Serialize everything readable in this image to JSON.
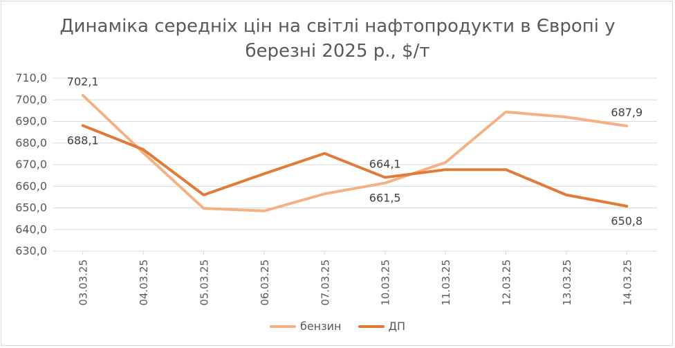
{
  "chart_data": {
    "type": "line",
    "title_lines": [
      "Динаміка середніх цін на світлі нафтопродукти в Європі у",
      "березні 2025 р., $/т"
    ],
    "categories": [
      "03.03.25",
      "04.03.25",
      "05.03.25",
      "06.03.25",
      "07.03.25",
      "10.03.25",
      "11.03.25",
      "12.03.25",
      "13.03.25",
      "14.03.25"
    ],
    "ylim": [
      630,
      710
    ],
    "yticks": [
      "630,0",
      "640,0",
      "650,0",
      "660,0",
      "670,0",
      "680,0",
      "690,0",
      "700,0",
      "710,0"
    ],
    "grid": true,
    "legend_position": "bottom",
    "series": [
      {
        "name": "бензин",
        "color": "#f4b183",
        "values": [
          702.1,
          675.5,
          649.8,
          648.6,
          656.5,
          661.5,
          671.0,
          694.4,
          692.0,
          687.9
        ],
        "labels": [
          {
            "index": 0,
            "text": "702,1",
            "pos": "above"
          },
          {
            "index": 5,
            "text": "661,5",
            "pos": "below"
          },
          {
            "index": 9,
            "text": "687,9",
            "pos": "above"
          }
        ]
      },
      {
        "name": "ДП",
        "color": "#e07b39",
        "values": [
          688.1,
          677.0,
          656.0,
          665.8,
          675.2,
          664.1,
          667.7,
          667.7,
          656.0,
          650.8
        ],
        "labels": [
          {
            "index": 0,
            "text": "688,1",
            "pos": "below"
          },
          {
            "index": 5,
            "text": "664,1",
            "pos": "above"
          },
          {
            "index": 9,
            "text": "650,8",
            "pos": "below"
          }
        ]
      }
    ]
  }
}
